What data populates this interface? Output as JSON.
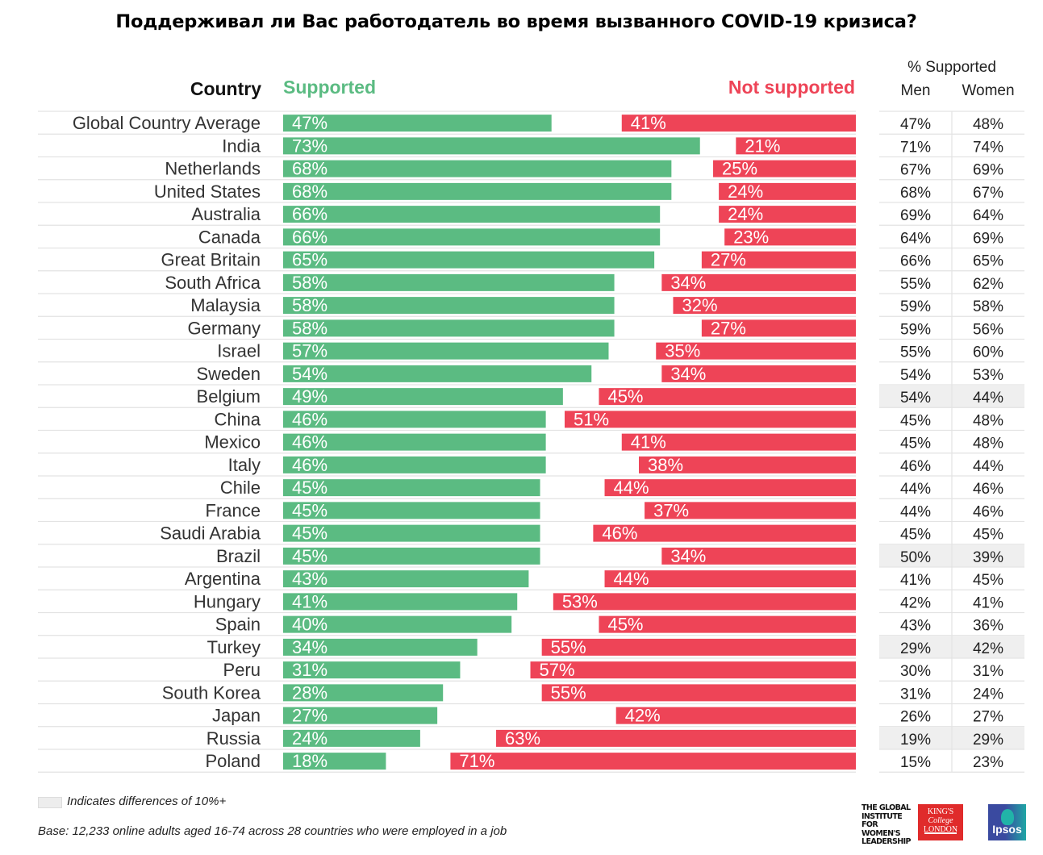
{
  "title": "Поддерживал ли Вас работодатель во время вызванного COVID-19 кризиса?",
  "headers": {
    "country": "Country",
    "supported": "Supported",
    "not_supported": "Not  supported",
    "pct_supported": "% Supported",
    "men": "Men",
    "women": "Women"
  },
  "colors": {
    "supported": "#5bbb82",
    "not_supported": "#ee4457",
    "highlight": "#efefef"
  },
  "legend": {
    "highlight_note": "Indicates differences of 10%+"
  },
  "footnote": "Base: 12,233 online adults aged 16-74 across 28 countries who were employed in a job",
  "logos": {
    "giwl": [
      "THE GLOBAL",
      "INSTITUTE",
      "FOR WOMEN'S",
      "LEADERSHIP"
    ],
    "kcl": [
      "KING'S",
      "College",
      "LONDON"
    ],
    "ipsos": "Ipsos"
  },
  "chart_data": {
    "type": "bar",
    "orientation": "horizontal-diverging",
    "title": "Поддерживал ли Вас работодатель во время вызванного COVID-19 кризиса?",
    "xlabel": "",
    "ylabel": "Country",
    "xlim": [
      0,
      100
    ],
    "grid": false,
    "legend": "top",
    "categories": [
      "Global Country Average",
      "India",
      "Netherlands",
      "United States",
      "Australia",
      "Canada",
      "Great Britain",
      "South Africa",
      "Malaysia",
      "Germany",
      "Israel",
      "Sweden",
      "Belgium",
      "China",
      "Mexico",
      "Italy",
      "Chile",
      "France",
      "Saudi Arabia",
      "Brazil",
      "Argentina",
      "Hungary",
      "Spain",
      "Turkey",
      "Peru",
      "South Korea",
      "Japan",
      "Russia",
      "Poland"
    ],
    "series": [
      {
        "name": "Supported",
        "values": [
          47,
          73,
          68,
          68,
          66,
          66,
          65,
          58,
          58,
          58,
          57,
          54,
          49,
          46,
          46,
          46,
          45,
          45,
          45,
          45,
          43,
          41,
          40,
          34,
          31,
          28,
          27,
          24,
          18
        ]
      },
      {
        "name": "Not supported",
        "values": [
          41,
          21,
          25,
          24,
          24,
          23,
          27,
          34,
          32,
          27,
          35,
          34,
          45,
          51,
          41,
          38,
          44,
          37,
          46,
          34,
          44,
          53,
          45,
          55,
          57,
          55,
          42,
          63,
          71
        ]
      }
    ],
    "table": {
      "title": "% Supported",
      "columns": [
        "Men",
        "Women"
      ],
      "men": [
        47,
        71,
        67,
        68,
        69,
        64,
        66,
        55,
        59,
        59,
        55,
        54,
        54,
        45,
        45,
        46,
        44,
        44,
        45,
        50,
        41,
        42,
        43,
        29,
        30,
        31,
        26,
        19,
        15
      ],
      "women": [
        48,
        74,
        69,
        67,
        64,
        69,
        65,
        62,
        58,
        56,
        60,
        53,
        44,
        48,
        48,
        44,
        46,
        46,
        45,
        39,
        45,
        41,
        36,
        42,
        31,
        24,
        27,
        29,
        23
      ],
      "highlighted": [
        false,
        false,
        false,
        false,
        false,
        false,
        false,
        false,
        false,
        false,
        false,
        false,
        true,
        false,
        false,
        false,
        false,
        false,
        false,
        true,
        false,
        false,
        false,
        true,
        false,
        false,
        false,
        true,
        false
      ]
    }
  }
}
